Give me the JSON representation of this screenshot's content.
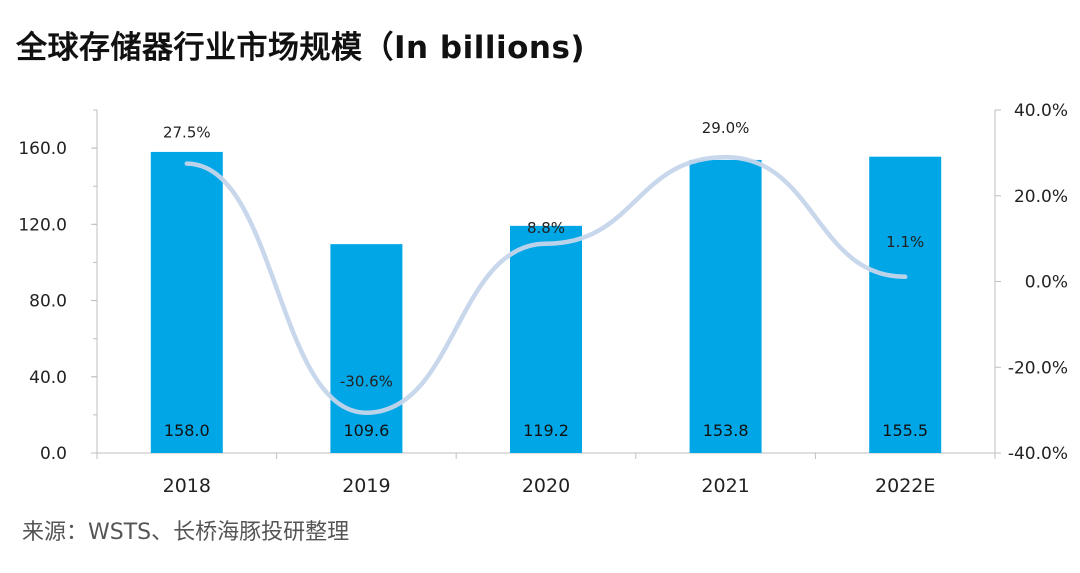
{
  "title": "全球存储器行业市场规模（In billions)",
  "source": "来源：WSTS、长桥海豚投研整理",
  "colors": {
    "bar": "#00a6e6",
    "line": "#c5d5ea",
    "axis": "#bfbfbf",
    "text": "#222222"
  },
  "chart_data": {
    "type": "bar",
    "categories": [
      "2018",
      "2019",
      "2020",
      "2021",
      "2022E"
    ],
    "series": [
      {
        "values": [
          158.0,
          109.6,
          119.2,
          153.8,
          155.5
        ],
        "labels": [
          "158.0",
          "109.6",
          "119.2",
          "153.8",
          "155.5"
        ],
        "axis": "left"
      },
      {
        "type": "line",
        "smooth": true,
        "values": [
          27.5,
          -30.6,
          8.8,
          29.0,
          1.1
        ],
        "labels": [
          "27.5%",
          "-30.6%",
          "8.8%",
          "29.0%",
          "1.1%"
        ],
        "axis": "right"
      }
    ],
    "ylim": [
      0,
      180
    ],
    "yticks": [
      "0.0",
      "40.0",
      "80.0",
      "120.0",
      "160.0"
    ],
    "yticks_values": [
      0,
      40,
      80,
      120,
      160
    ],
    "y2lim": [
      -40,
      40
    ],
    "y2ticks": [
      "-40.0%",
      "-20.0%",
      "0.0%",
      "20.0%",
      "40.0%"
    ],
    "y2ticks_values": [
      -40,
      -20,
      0,
      20,
      40
    ],
    "grid": false,
    "legend": "none"
  }
}
